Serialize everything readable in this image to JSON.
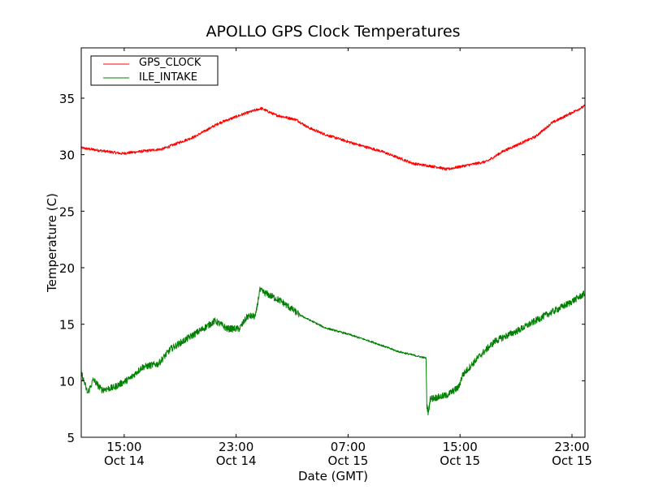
{
  "chart_data": {
    "type": "line",
    "title": "APOLLO GPS Clock Temperatures",
    "xlabel": "Date (GMT)",
    "ylabel": "Temperature (C)",
    "x_units": "hours since Oct 14 00:00 GMT",
    "xlim": [
      11.93,
      47.93
    ],
    "ylim": [
      5,
      39.45
    ],
    "grid": false,
    "legend_position": "top-left",
    "x_ticks": [
      {
        "value": 15,
        "time": "15:00",
        "date": "Oct 14"
      },
      {
        "value": 23,
        "time": "23:00",
        "date": "Oct 14"
      },
      {
        "value": 31,
        "time": "07:00",
        "date": "Oct 15"
      },
      {
        "value": 39,
        "time": "15:00",
        "date": "Oct 15"
      },
      {
        "value": 47,
        "time": "23:00",
        "date": "Oct 15"
      }
    ],
    "y_ticks": [
      5,
      10,
      15,
      20,
      25,
      30,
      35
    ],
    "series": [
      {
        "name": "GPS_CLOCK",
        "color": "#ff0000",
        "noise": 0.12,
        "points": [
          [
            11.93,
            30.6
          ],
          [
            14.83,
            30.1
          ],
          [
            17.73,
            30.5
          ],
          [
            20.05,
            31.6
          ],
          [
            21.79,
            32.8
          ],
          [
            23.52,
            33.6
          ],
          [
            24.8,
            34.1
          ],
          [
            25.84,
            33.5
          ],
          [
            27.29,
            33.1
          ],
          [
            28.16,
            32.4
          ],
          [
            29.32,
            31.8
          ],
          [
            31.64,
            30.9
          ],
          [
            33.38,
            30.3
          ],
          [
            35.7,
            29.2
          ],
          [
            37.43,
            28.9
          ],
          [
            38.01,
            28.7
          ],
          [
            40.91,
            29.4
          ],
          [
            42.07,
            30.3
          ],
          [
            44.39,
            31.6
          ],
          [
            45.55,
            32.8
          ],
          [
            47.9,
            34.3
          ]
        ]
      },
      {
        "name": "ILE_INTAKE",
        "color": "#008000",
        "noise": 0.3,
        "points": [
          [
            11.93,
            10.7
          ],
          [
            12.39,
            8.9
          ],
          [
            12.8,
            10.1
          ],
          [
            13.38,
            9.2
          ],
          [
            14.25,
            9.4
          ],
          [
            15.41,
            10.2
          ],
          [
            16.28,
            11.2
          ],
          [
            17.44,
            11.5
          ],
          [
            18.31,
            12.8
          ],
          [
            19.47,
            13.7
          ],
          [
            20.63,
            14.6
          ],
          [
            21.5,
            15.3
          ],
          [
            22.36,
            14.6
          ],
          [
            23.23,
            14.6
          ],
          [
            23.81,
            15.7
          ],
          [
            24.39,
            15.7
          ],
          [
            24.68,
            18.0
          ],
          [
            26.13,
            17.1
          ],
          [
            27.58,
            15.8
          ],
          [
            29.32,
            14.7
          ],
          [
            31.06,
            14.1
          ],
          [
            32.8,
            13.4
          ],
          [
            34.54,
            12.6
          ],
          [
            36.57,
            12.0
          ],
          [
            36.63,
            7.8
          ],
          [
            36.74,
            7.1
          ],
          [
            36.86,
            8.4
          ],
          [
            38.01,
            8.7
          ],
          [
            38.89,
            9.4
          ],
          [
            39.18,
            10.5
          ],
          [
            40.33,
            12.1
          ],
          [
            41.49,
            13.5
          ],
          [
            43.23,
            14.5
          ],
          [
            44.97,
            15.7
          ],
          [
            46.71,
            16.8
          ],
          [
            47.9,
            17.7
          ]
        ]
      }
    ]
  }
}
